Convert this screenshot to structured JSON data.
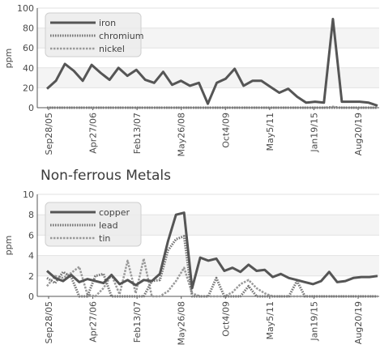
{
  "chart_data": [
    {
      "type": "line",
      "title": "",
      "xlabel": "",
      "ylabel": "ppm",
      "ylim": [
        0,
        100
      ],
      "yticks": [
        0,
        20,
        40,
        60,
        80,
        100
      ],
      "xtick_labels": [
        "Sep28/05",
        "Apr27/06",
        "Feb13/07",
        "May26/08",
        "Oct4/09",
        "May5/11",
        "Jan19/15",
        "Aug20/19"
      ],
      "grid": true,
      "legend_position": "top-left",
      "series": [
        {
          "name": "iron",
          "style": "solid",
          "color": "#555555",
          "values": [
            19,
            27,
            44,
            37,
            27,
            43,
            35,
            28,
            40,
            32,
            38,
            28,
            25,
            36,
            23,
            27,
            22,
            25,
            4,
            25,
            29,
            39,
            22,
            27,
            27,
            21,
            15,
            19,
            11,
            5,
            6,
            5,
            89,
            6,
            6,
            6,
            5,
            2
          ]
        },
        {
          "name": "chromium",
          "style": "dotted",
          "color": "#777777",
          "values": [
            0,
            0,
            0,
            0,
            0,
            0,
            0,
            0,
            0,
            0,
            0,
            0,
            0,
            0,
            0,
            0,
            0,
            0,
            0,
            0,
            0,
            0,
            0,
            0,
            0,
            0,
            0,
            0,
            0,
            0,
            0,
            0,
            0,
            0,
            0,
            0,
            0,
            0
          ]
        },
        {
          "name": "nickel",
          "style": "dashed",
          "color": "#999999",
          "values": [
            0,
            0,
            0,
            0,
            0,
            0,
            0,
            0,
            0,
            0,
            0,
            0,
            0,
            0,
            0,
            0,
            0,
            0,
            0,
            0,
            0,
            0,
            0,
            0,
            0,
            0,
            0,
            0,
            0,
            0,
            0,
            0,
            1,
            0,
            0,
            0,
            0,
            0
          ]
        }
      ]
    },
    {
      "type": "line",
      "title": "Non-ferrous Metals",
      "xlabel": "",
      "ylabel": "ppm",
      "ylim": [
        0,
        10
      ],
      "yticks": [
        0,
        2,
        4,
        6,
        8,
        10
      ],
      "xtick_labels": [
        "Sep28/05",
        "Apr27/06",
        "Feb13/07",
        "May26/08",
        "Oct4/09",
        "May5/11",
        "Jan19/15",
        "Aug20/19"
      ],
      "grid": true,
      "legend_position": "top-left",
      "series": [
        {
          "name": "copper",
          "style": "solid",
          "color": "#555555",
          "values": [
            2.5,
            1.8,
            1.5,
            2.1,
            1.4,
            1.7,
            1.5,
            1.3,
            2.1,
            1.2,
            1.6,
            1.1,
            1.6,
            1.5,
            2.2,
            5.4,
            8.0,
            8.2,
            0.8,
            3.8,
            3.5,
            3.7,
            2.5,
            2.8,
            2.4,
            3.1,
            2.5,
            2.6,
            1.9,
            2.2,
            1.8,
            1.6,
            1.4,
            1.2,
            1.5,
            2.4,
            1.4,
            1.5,
            1.8,
            1.9,
            1.9,
            2.0
          ]
        },
        {
          "name": "lead",
          "style": "dotted",
          "color": "#777777",
          "values": [
            1.8,
            1.3,
            2.4,
            1.9,
            0.0,
            0.0,
            2.0,
            2.2,
            0.0,
            0.0,
            0.0,
            0.0,
            0.0,
            1.5,
            1.6,
            4.5,
            5.6,
            5.9,
            0.0,
            0.0,
            0.0,
            1.8,
            0.0,
            0.0,
            0.0,
            1.0,
            0.0,
            0.0,
            0.0,
            0.0,
            0.0,
            1.5,
            0.0,
            0.0,
            0.0,
            0.0,
            0.0,
            0.0,
            0.0,
            0.0,
            0.0,
            0.0
          ]
        },
        {
          "name": "tin",
          "style": "dashed",
          "color": "#999999",
          "values": [
            1.0,
            2.0,
            1.8,
            2.3,
            2.9,
            0.2,
            0.0,
            0.8,
            2.1,
            0.2,
            3.5,
            0.3,
            3.7,
            0.0,
            0.0,
            0.5,
            1.5,
            2.8,
            0.3,
            0.0,
            0.0,
            0.0,
            0.0,
            0.4,
            1.2,
            1.6,
            0.8,
            0.3,
            0.0,
            0.0,
            0.0,
            0.0,
            0.0,
            0.0,
            0.0,
            0.0,
            0.0,
            0.0,
            0.0,
            0.0,
            0.0,
            0.0
          ]
        }
      ]
    }
  ]
}
